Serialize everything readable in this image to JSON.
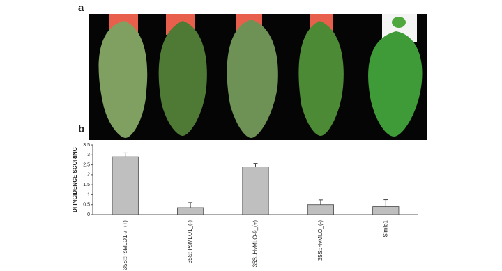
{
  "panels": {
    "a": "a",
    "b": "b"
  },
  "chart_data": {
    "type": "bar",
    "ylabel": "DI INCIDENCE SCORING",
    "categories": [
      "35S::PsMLO1-7_(+)",
      "35S::PsMLO1_(-)",
      "35S::HvMLO-9_(+)",
      "35S::HvMLO_(-)",
      "Slmlo1"
    ],
    "values": [
      2.9,
      0.35,
      2.4,
      0.5,
      0.4
    ],
    "errors": [
      0.2,
      0.25,
      0.17,
      0.24,
      0.35
    ],
    "color": "#bfbfbf",
    "ylim": [
      0,
      3.5
    ],
    "yticks": [
      0,
      0.5,
      1,
      1.5,
      2,
      2.5,
      3,
      3.5
    ]
  }
}
